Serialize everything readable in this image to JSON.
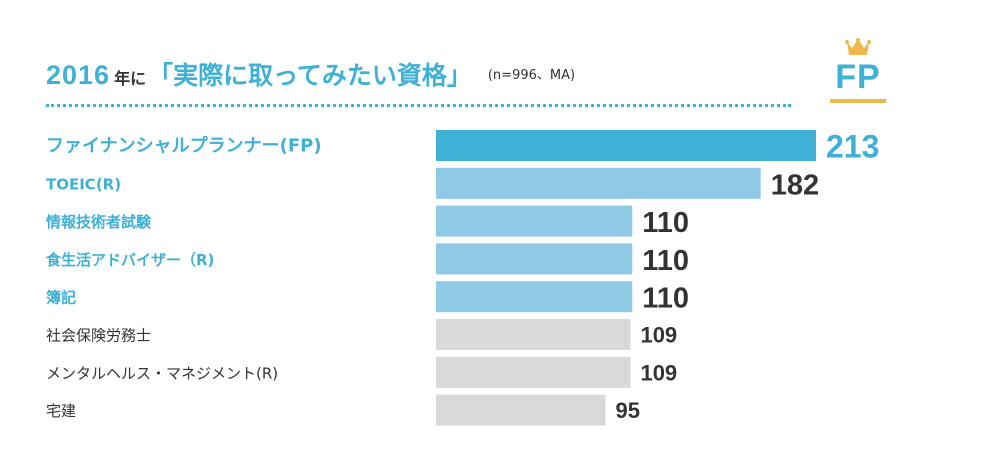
{
  "title": {
    "year": "2016",
    "mid": "年に",
    "main": "「実際に取ってみたい資格」",
    "note": "(n=996、MA)"
  },
  "badge": {
    "label": "FP",
    "icon": "crown-icon"
  },
  "colors": {
    "accent": "#3fb0d6",
    "highlight": "#8ec9e6",
    "gray": "#d9d9d9",
    "gold": "#f0b84a",
    "label_dark": "#333333"
  },
  "chart_data": {
    "type": "bar",
    "orientation": "horizontal",
    "title": "2016年に「実際に取ってみたい資格」",
    "subtitle": "(n=996、MA)",
    "categories": [
      "ファイナンシャルプランナー(FP)",
      "TOEIC(R)",
      "情報技術者試験",
      "食生活アドバイザー（R)",
      "簿記",
      "社会保険労務士",
      "メンタルヘルス・マネジメント(R)",
      "宅建"
    ],
    "values": [
      213,
      182,
      110,
      110,
      110,
      109,
      109,
      95
    ],
    "highlight": [
      "top",
      "blue",
      "blue",
      "blue",
      "blue",
      "gray",
      "gray",
      "gray"
    ],
    "xlabel": "",
    "ylabel": "",
    "xlim": [
      0,
      213
    ],
    "grid": false
  }
}
